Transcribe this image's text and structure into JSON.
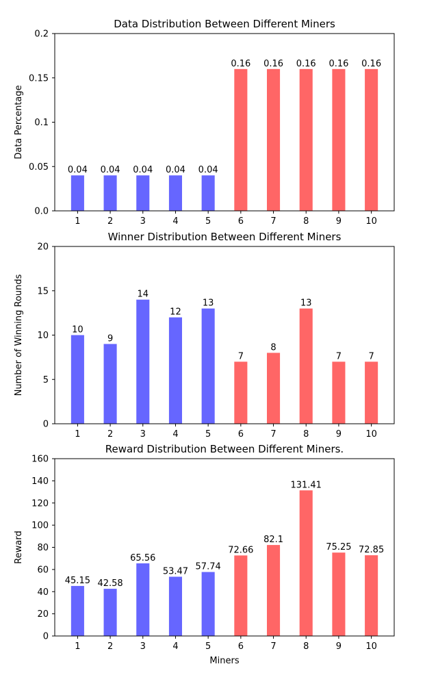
{
  "colors": {
    "blue": "#6666ff",
    "red": "#ff6666"
  },
  "chart_data": [
    {
      "type": "bar",
      "title": "Data Distribution Between Different Miners",
      "xlabel": "",
      "ylabel": "Data Percentage",
      "categories": [
        "1",
        "2",
        "3",
        "4",
        "5",
        "6",
        "7",
        "8",
        "9",
        "10"
      ],
      "values": [
        0.04,
        0.04,
        0.04,
        0.04,
        0.04,
        0.16,
        0.16,
        0.16,
        0.16,
        0.16
      ],
      "value_labels": [
        "0.04",
        "0.04",
        "0.04",
        "0.04",
        "0.04",
        "0.16",
        "0.16",
        "0.16",
        "0.16",
        "0.16"
      ],
      "bar_colors": [
        "blue",
        "blue",
        "blue",
        "blue",
        "blue",
        "red",
        "red",
        "red",
        "red",
        "red"
      ],
      "ylim": [
        0,
        0.2
      ],
      "yticks": [
        0,
        0.05,
        0.1,
        0.15,
        0.2
      ],
      "ytick_labels": [
        "0.0",
        "0.05",
        "0.1",
        "0.15",
        "0.2"
      ],
      "grid": false
    },
    {
      "type": "bar",
      "title": "Winner Distribution Between Different Miners",
      "xlabel": "",
      "ylabel": "Number of Winning Rounds",
      "categories": [
        "1",
        "2",
        "3",
        "4",
        "5",
        "6",
        "7",
        "8",
        "9",
        "10"
      ],
      "values": [
        10,
        9,
        14,
        12,
        13,
        7,
        8,
        13,
        7,
        7
      ],
      "value_labels": [
        "10",
        "9",
        "14",
        "12",
        "13",
        "7",
        "8",
        "13",
        "7",
        "7"
      ],
      "bar_colors": [
        "blue",
        "blue",
        "blue",
        "blue",
        "blue",
        "red",
        "red",
        "red",
        "red",
        "red"
      ],
      "ylim": [
        0,
        20
      ],
      "yticks": [
        0,
        5,
        10,
        15,
        20
      ],
      "ytick_labels": [
        "0",
        "5",
        "10",
        "15",
        "20"
      ],
      "grid": false
    },
    {
      "type": "bar",
      "title": "Reward Distribution Between Different Miners.",
      "xlabel": "Miners",
      "ylabel": "Reward",
      "categories": [
        "1",
        "2",
        "3",
        "4",
        "5",
        "6",
        "7",
        "8",
        "9",
        "10"
      ],
      "values": [
        45.15,
        42.58,
        65.56,
        53.47,
        57.74,
        72.66,
        82.1,
        131.41,
        75.25,
        72.85
      ],
      "value_labels": [
        "45.15",
        "42.58",
        "65.56",
        "53.47",
        "57.74",
        "72.66",
        "82.1",
        "131.41",
        "75.25",
        "72.85"
      ],
      "bar_colors": [
        "blue",
        "blue",
        "blue",
        "blue",
        "blue",
        "red",
        "red",
        "red",
        "red",
        "red"
      ],
      "ylim": [
        0,
        160
      ],
      "yticks": [
        0,
        20,
        40,
        60,
        80,
        100,
        120,
        140,
        160
      ],
      "ytick_labels": [
        "0",
        "20",
        "40",
        "60",
        "80",
        "100",
        "120",
        "140",
        "160"
      ],
      "grid": false
    }
  ]
}
